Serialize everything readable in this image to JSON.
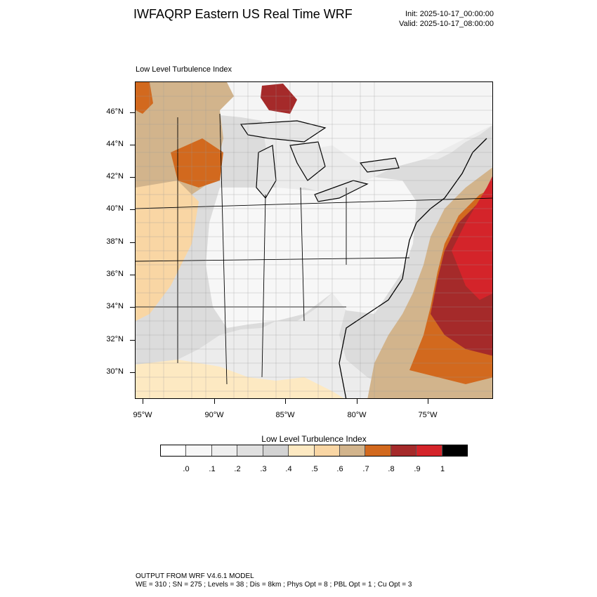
{
  "header": {
    "title": "IWFAQRP Eastern US Real Time WRF",
    "init": "Init: 2025-10-17_00:00:00",
    "valid": "Valid: 2025-10-17_08:00:00"
  },
  "map": {
    "label": "Low Level Turbulence Index",
    "lat_labels": [
      "46°N",
      "44°N",
      "42°N",
      "40°N",
      "38°N",
      "36°N",
      "34°N",
      "32°N",
      "30°N"
    ],
    "lon_labels": [
      "95°W",
      "90°W",
      "85°W",
      "80°W",
      "75°W"
    ],
    "colors": {
      "ocean": "#f2f2f2",
      "land_low": "#f7f7f7",
      "grey": "#d9d9d9",
      "tan_light": "#fde9c2",
      "tan": "#f9d6a4",
      "tan_dark": "#d2b48c",
      "orange": "#d2691e",
      "brown_red": "#a52a2a",
      "red": "#d4242a",
      "black": "#000000"
    }
  },
  "colorbar": {
    "title": "Low Level Turbulence Index",
    "labels": [
      ".0",
      ".1",
      ".2",
      ".3",
      ".4",
      ".5",
      ".6",
      ".7",
      ".8",
      ".9",
      "1"
    ],
    "colors": [
      "#ffffff",
      "#f7f7f7",
      "#efefef",
      "#e0e0e0",
      "#d3d3d3",
      "#fde9c2",
      "#f9d6a4",
      "#d2b48c",
      "#d2691e",
      "#a52a2a",
      "#d4242a",
      "#000000"
    ]
  },
  "footer": {
    "line1": "OUTPUT FROM WRF V4.6.1 MODEL",
    "line2": "WE = 310 ; SN = 275 ; Levels = 38 ; Dis = 8km ; Phys Opt = 8 ; PBL Opt = 1 ; Cu Opt = 3"
  }
}
